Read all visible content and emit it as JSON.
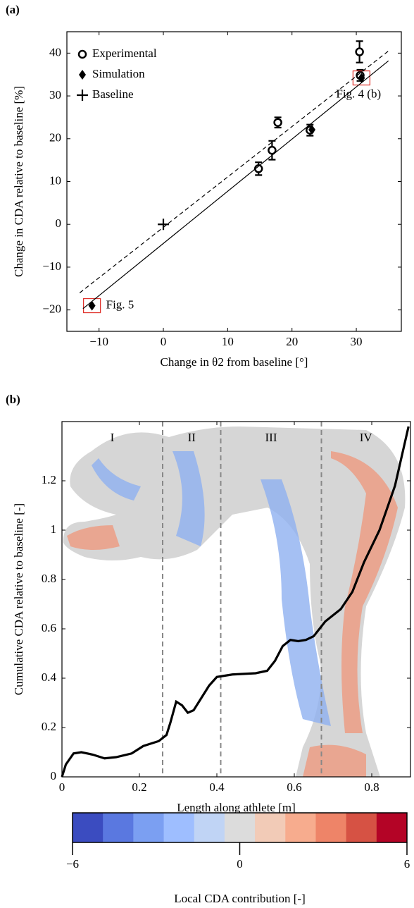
{
  "chart_data": [
    {
      "type": "scatter",
      "panel": "(a)",
      "x_label": "Change in θ2 from baseline [°]",
      "y_label": "Change in CDA relative to baseline [%]",
      "xlim": [
        -15,
        37
      ],
      "ylim": [
        -25,
        45
      ],
      "xticks": [
        {
          "value": -10,
          "label": "−10"
        },
        0,
        10,
        20,
        30
      ],
      "yticks": [
        {
          "value": -20,
          "label": "−20"
        },
        {
          "value": -10,
          "label": "−10"
        },
        0,
        10,
        20,
        30,
        40
      ],
      "legend": "top-left",
      "highlight_color": "#e0302a",
      "series": [
        {
          "name": "Experimental",
          "marker": "circle",
          "color": "#000000",
          "x": [
            14.8,
            16.9,
            17.8,
            22.8,
            30.5,
            30.6
          ],
          "values": [
            13,
            17.3,
            23.8,
            22,
            40.3,
            34.8
          ],
          "errors": [
            1.5,
            2.2,
            1.2,
            1.3,
            2.5,
            1.3
          ]
        },
        {
          "name": "Simulation",
          "marker": "diamond",
          "color": "#000000",
          "x": [
            23.1,
            30.8,
            -11.1
          ],
          "values": [
            22.1,
            34.2,
            -19
          ],
          "point_labels": [
            null,
            "Fig. 4 (b)",
            "Fig. 5"
          ]
        },
        {
          "name": "Baseline",
          "marker": "plus",
          "color": "#000000",
          "x": [
            0
          ],
          "values": [
            0
          ]
        },
        {
          "marker": "line",
          "style": "solid",
          "color": "#000000",
          "x": [
            -12.5,
            35
          ],
          "values": [
            -19.7,
            38.2
          ]
        },
        {
          "marker": "line",
          "style": "dashed",
          "color": "#000000",
          "x": [
            -13,
            35
          ],
          "values": [
            -16,
            40.5
          ]
        }
      ]
    },
    {
      "type": "line",
      "panel": "(b)",
      "x_label": "Length along athlete [m]",
      "y_label": "Cumulative CDA relative to baseline [-]",
      "xlim": [
        0,
        0.9
      ],
      "ylim": [
        0,
        1.44
      ],
      "xticks": [
        0,
        0.2,
        0.4,
        0.6,
        0.8
      ],
      "yticks": [
        0,
        0.2,
        0.4,
        0.6,
        0.8,
        1,
        1.2
      ],
      "color": "#000000",
      "x": [
        0,
        0.01,
        0.03,
        0.05,
        0.08,
        0.11,
        0.14,
        0.18,
        0.21,
        0.25,
        0.27,
        0.28,
        0.295,
        0.31,
        0.325,
        0.34,
        0.36,
        0.38,
        0.4,
        0.44,
        0.5,
        0.53,
        0.55,
        0.57,
        0.59,
        0.61,
        0.63,
        0.65,
        0.68,
        0.72,
        0.75,
        0.78,
        0.82,
        0.86,
        0.895
      ],
      "values": [
        0,
        0.05,
        0.095,
        0.1,
        0.09,
        0.075,
        0.08,
        0.095,
        0.125,
        0.145,
        0.17,
        0.22,
        0.305,
        0.29,
        0.26,
        0.27,
        0.32,
        0.37,
        0.405,
        0.415,
        0.42,
        0.43,
        0.47,
        0.53,
        0.555,
        0.55,
        0.555,
        0.57,
        0.63,
        0.68,
        0.75,
        0.87,
        1.0,
        1.18,
        1.42
      ],
      "region_bounds": [
        0.26,
        0.41,
        0.67
      ],
      "regions": [
        "I",
        "II",
        "III",
        "IV"
      ],
      "colorbar": {
        "label": "Local CDA contribution [-]",
        "lim": [
          -6,
          6
        ],
        "ticks": [
          {
            "value": -6,
            "label": "−6"
          },
          0,
          6
        ],
        "colors": [
          "#3b4cc0",
          "#5a78e0",
          "#7b9ff2",
          "#9ebeff",
          "#c0d4f5",
          "#dcdcdc",
          "#f2cbb7",
          "#f7ac8e",
          "#ee8468",
          "#d65244",
          "#b40426"
        ]
      }
    }
  ]
}
